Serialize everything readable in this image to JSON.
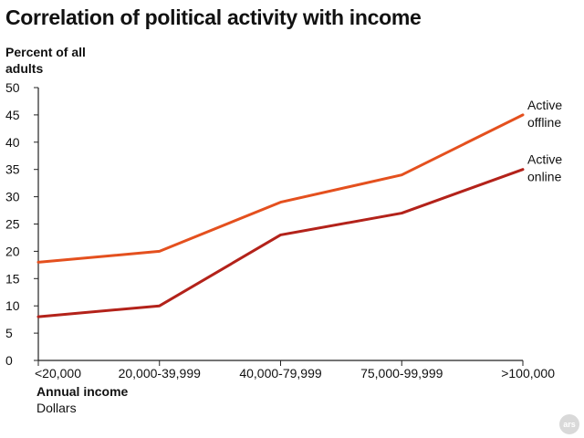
{
  "chart_data": {
    "type": "line",
    "title": "Correlation of political activity with income",
    "ylabel": "Percent of all adults",
    "xlabel": "Annual income",
    "xunit": "Dollars",
    "categories": [
      "<20,000",
      "20,000-39,999",
      "40,000-79,999",
      "75,000-99,999",
      ">100,000"
    ],
    "ylim": [
      0,
      50
    ],
    "yticks": [
      0,
      5,
      10,
      15,
      20,
      25,
      30,
      35,
      40,
      45,
      50
    ],
    "grid": false,
    "legend": "inline-right",
    "series": [
      {
        "name": "Active offline",
        "name_lines": [
          "Active",
          "offline"
        ],
        "color": "#e4501e",
        "values": [
          18,
          20,
          29,
          34,
          45
        ]
      },
      {
        "name": "Active online",
        "name_lines": [
          "Active",
          "online"
        ],
        "color": "#b3221a",
        "values": [
          8,
          10,
          23,
          27,
          35
        ]
      }
    ]
  },
  "branding": {
    "logo_text": "ars"
  }
}
